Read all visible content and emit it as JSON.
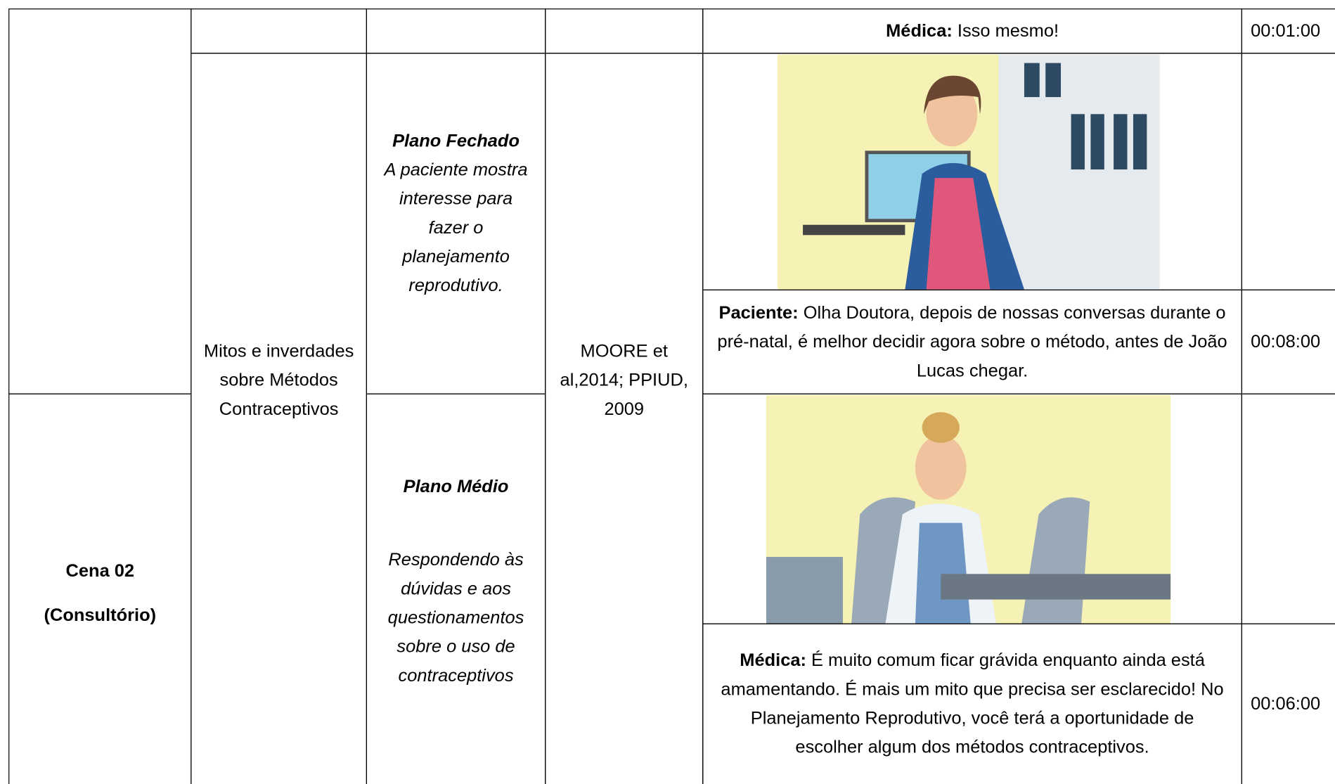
{
  "table": {
    "scene": {
      "title": "Cena 02",
      "subtitle": "(Consultório)"
    },
    "topic": "Mitos e inverdades sobre Métodos Contraceptivos",
    "references": "MOORE et al,2014; PPIUD, 2009",
    "shots": [
      {
        "title": "Plano Fechado",
        "description": "A paciente mostra interesse para fazer o planejamento reprodutivo."
      },
      {
        "title": "Plano Médio",
        "description": "Respondendo às dúvidas e aos questionamentos sobre o uso de contraceptivos"
      }
    ],
    "dialogues": [
      {
        "speaker": "Médica:",
        "text": "Isso mesmo!",
        "time": "00:01:00"
      },
      {
        "speaker": "Paciente:",
        "text": "Olha Doutora, depois de nossas conversas durante o pré-natal, é melhor decidir agora sobre o método, antes de João Lucas chegar.",
        "time": "00:08:00"
      },
      {
        "speaker": "Médica:",
        "text": "É muito comum ficar grávida enquanto ainda está amamentando. É mais um mito que precisa ser esclarecido! No Planejamento Reprodutivo, você terá a oportunidade de escolher algum dos métodos contraceptivos.",
        "time": "00:06:00"
      }
    ]
  }
}
